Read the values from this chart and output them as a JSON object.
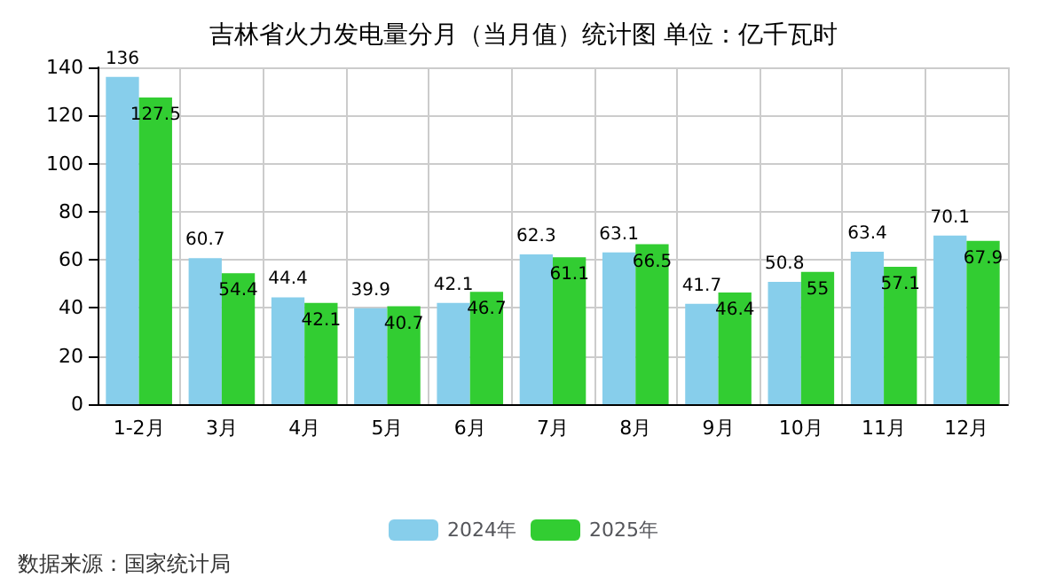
{
  "chart_data": {
    "type": "bar",
    "title": "吉林省火力发电量分月（当月值）统计图 单位：亿千瓦时",
    "categories": [
      "1-2月",
      "3月",
      "4月",
      "5月",
      "6月",
      "7月",
      "8月",
      "9月",
      "10月",
      "11月",
      "12月"
    ],
    "series": [
      {
        "name": "2024年",
        "color": "#87ceeb",
        "values": [
          136,
          60.7,
          44.4,
          39.9,
          42.1,
          62.3,
          63.1,
          41.7,
          50.8,
          63.4,
          70.1
        ]
      },
      {
        "name": "2025年",
        "color": "#32cd32",
        "values": [
          127.5,
          54.4,
          42.1,
          40.7,
          46.7,
          61.1,
          66.5,
          46.4,
          55,
          57.1,
          67.9
        ]
      }
    ],
    "ylim": [
      0,
      140
    ],
    "yticks": [
      0,
      20,
      40,
      60,
      80,
      100,
      120,
      140
    ],
    "grid": true,
    "legend": "bottom",
    "data_labels": true,
    "annotations": [
      "数据来源：国家统计局"
    ]
  }
}
